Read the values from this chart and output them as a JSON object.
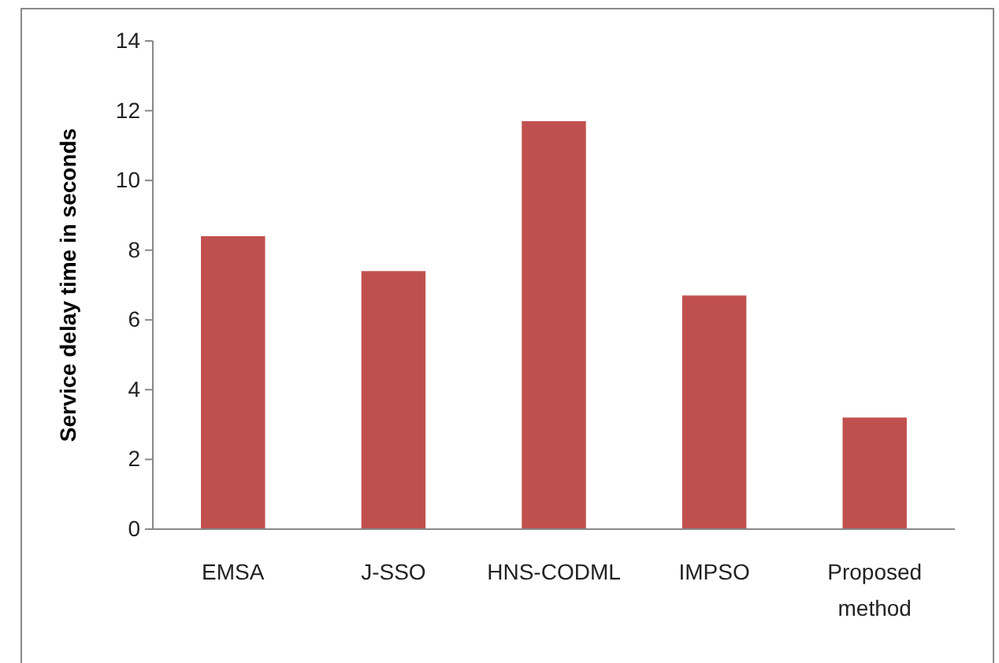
{
  "chart_data": {
    "type": "bar",
    "ylabel": "Service delay time in seconds",
    "categories": [
      "EMSA",
      "J-SSO",
      "HNS-CODML",
      "IMPSO",
      "Proposed method"
    ],
    "values": [
      8.4,
      7.4,
      11.7,
      6.7,
      3.2
    ],
    "color": "#c0504d",
    "ylim": [
      0,
      14
    ],
    "yticks": [
      0,
      2,
      4,
      6,
      8,
      10,
      12,
      14
    ],
    "grid": false
  }
}
